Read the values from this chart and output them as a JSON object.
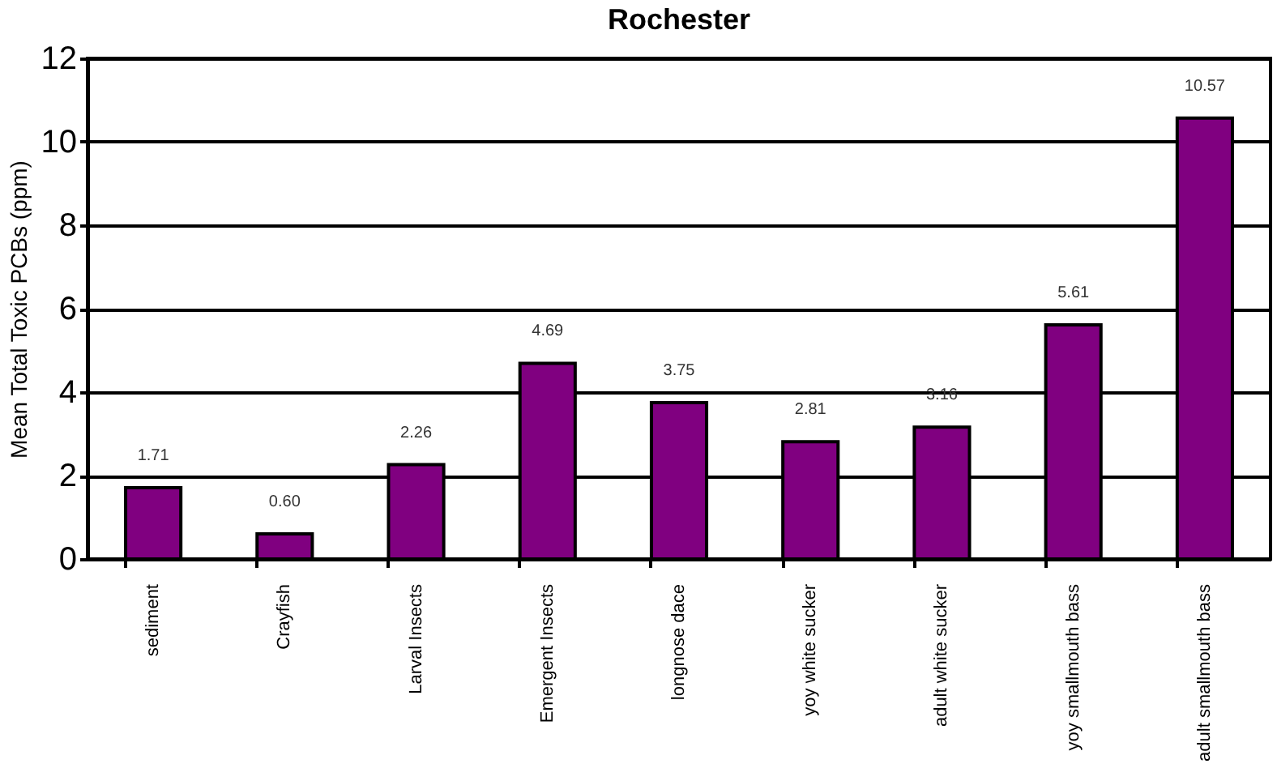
{
  "chart_data": {
    "type": "bar",
    "title": "Rochester",
    "ylabel": "Mean Total Toxic PCBs (ppm)",
    "categories": [
      "sediment",
      "Crayfish",
      "Larval Insects",
      "Emergent Insects",
      "longnose dace",
      "yoy white sucker",
      "adult white sucker",
      "yoy smallmouth bass",
      "adult smallmouth bass"
    ],
    "values": [
      1.71,
      0.6,
      2.26,
      4.69,
      3.75,
      2.81,
      3.16,
      5.61,
      10.57
    ],
    "value_labels": [
      "1.71",
      "0.60",
      "2.26",
      "4.69",
      "3.75",
      "2.81",
      "3.16",
      "5.61",
      "10.57"
    ],
    "color": "#800080",
    "ylim": [
      0,
      12
    ],
    "yticks": [
      0,
      2,
      4,
      6,
      8,
      10,
      12
    ],
    "grid": "y"
  }
}
